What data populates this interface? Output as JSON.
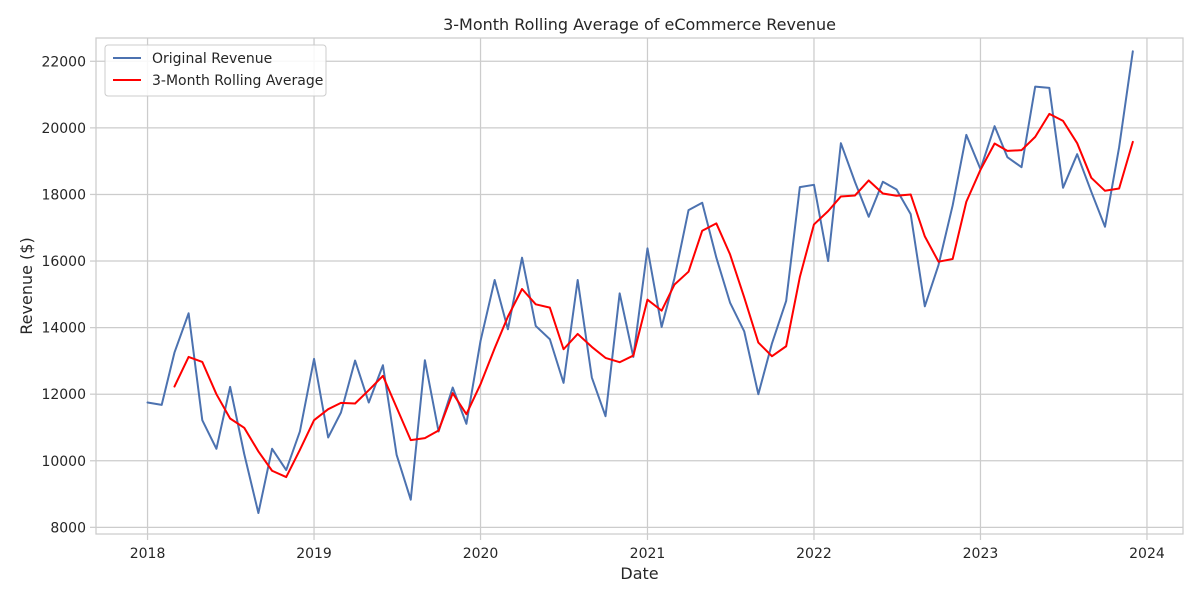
{
  "chart_data": {
    "type": "line",
    "title": "3-Month Rolling Average of eCommerce Revenue",
    "xlabel": "Date",
    "ylabel": "Revenue ($)",
    "xlim": [
      "2017-09-10",
      "2024-03-20"
    ],
    "ylim": [
      7800,
      22700
    ],
    "x_ticks": [
      "2018",
      "2019",
      "2020",
      "2021",
      "2022",
      "2023",
      "2024"
    ],
    "y_ticks": [
      8000,
      10000,
      12000,
      14000,
      16000,
      18000,
      20000,
      22000
    ],
    "grid": true,
    "legend_position": "top-left",
    "x": [
      "2018-01-01",
      "2018-02-01",
      "2018-03-01",
      "2018-04-01",
      "2018-05-01",
      "2018-06-01",
      "2018-07-01",
      "2018-08-01",
      "2018-09-01",
      "2018-10-01",
      "2018-11-01",
      "2018-12-01",
      "2019-01-01",
      "2019-02-01",
      "2019-03-01",
      "2019-04-01",
      "2019-05-01",
      "2019-06-01",
      "2019-07-01",
      "2019-08-01",
      "2019-09-01",
      "2019-10-01",
      "2019-11-01",
      "2019-12-01",
      "2020-01-01",
      "2020-02-01",
      "2020-03-01",
      "2020-04-01",
      "2020-05-01",
      "2020-06-01",
      "2020-07-01",
      "2020-08-01",
      "2020-09-01",
      "2020-10-01",
      "2020-11-01",
      "2020-12-01",
      "2021-01-01",
      "2021-02-01",
      "2021-03-01",
      "2021-04-01",
      "2021-05-01",
      "2021-06-01",
      "2021-07-01",
      "2021-08-01",
      "2021-09-01",
      "2021-10-01",
      "2021-11-01",
      "2021-12-01",
      "2022-01-01",
      "2022-02-01",
      "2022-03-01",
      "2022-04-01",
      "2022-05-01",
      "2022-06-01",
      "2022-07-01",
      "2022-08-01",
      "2022-09-01",
      "2022-10-01",
      "2022-11-01",
      "2022-12-01",
      "2023-01-01",
      "2023-02-01",
      "2023-03-01",
      "2023-04-01",
      "2023-05-01",
      "2023-06-01",
      "2023-07-01",
      "2023-08-01",
      "2023-09-01",
      "2023-10-01",
      "2023-11-01",
      "2023-12-01"
    ],
    "series": [
      {
        "name": "Original Revenue",
        "color": "#4c72b0",
        "values": [
          11750,
          11680,
          13250,
          14430,
          11220,
          10360,
          12220,
          10200,
          8430,
          10360,
          9720,
          10880,
          13060,
          10700,
          11450,
          13010,
          11750,
          12870,
          10180,
          8830,
          13020,
          10880,
          12200,
          11110,
          13600,
          15430,
          13950,
          16100,
          14050,
          13650,
          12340,
          15430,
          12500,
          11340,
          15030,
          13120,
          16380,
          14020,
          15480,
          17530,
          17750,
          16100,
          14750,
          13890,
          12000,
          13530,
          14800,
          18220,
          18290,
          16000,
          19540,
          18370,
          17330,
          18380,
          18150,
          17410,
          14640,
          15880,
          17670,
          19790,
          18760,
          20050,
          19120,
          18820,
          21240,
          21200,
          18200,
          19210,
          18080,
          17030,
          19420,
          22300
        ]
      },
      {
        "name": "3-Month Rolling Average",
        "color": "#ff0000",
        "values": [
          null,
          null,
          12230,
          13120,
          12970,
          12000,
          11270,
          10990,
          10280,
          9700,
          9510,
          10330,
          11220,
          11550,
          11740,
          11720,
          12120,
          12550,
          11600,
          10620,
          10680,
          10910,
          12030,
          11400,
          12300,
          13380,
          14330,
          15160,
          14700,
          14600,
          13350,
          13810,
          13420,
          13090,
          12960,
          13160,
          14840,
          14510,
          15290,
          15680,
          16910,
          17130,
          16200,
          14910,
          13550,
          13140,
          13440,
          15520,
          17100,
          17500,
          17940,
          17970,
          18420,
          18030,
          17960,
          18000,
          16740,
          15980,
          16060,
          17780,
          18740,
          19530,
          19310,
          19330,
          19730,
          20420,
          20210,
          19540,
          18500,
          18110,
          18180,
          19580
        ]
      }
    ]
  }
}
